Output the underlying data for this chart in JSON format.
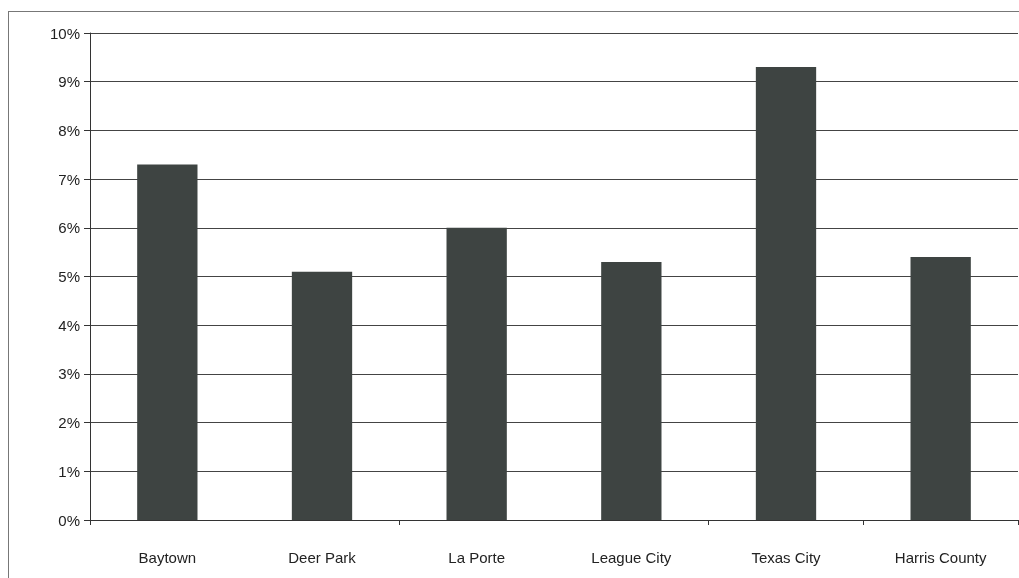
{
  "chart_data": {
    "type": "bar",
    "categories": [
      "Baytown",
      "Deer Park",
      "La Porte",
      "League City",
      "Texas City",
      "Harris County"
    ],
    "values": [
      7.3,
      5.1,
      6.0,
      5.3,
      9.3,
      5.4
    ],
    "color": "#3e4442",
    "ylim": [
      0,
      10
    ],
    "yticks": [
      {
        "value": 0,
        "label": "0%"
      },
      {
        "value": 1,
        "label": "1%"
      },
      {
        "value": 2,
        "label": "2%"
      },
      {
        "value": 3,
        "label": "3%"
      },
      {
        "value": 4,
        "label": "4%"
      },
      {
        "value": 5,
        "label": "5%"
      },
      {
        "value": 6,
        "label": "6%"
      },
      {
        "value": 7,
        "label": "7%"
      },
      {
        "value": 8,
        "label": "8%"
      },
      {
        "value": 9,
        "label": "9%"
      },
      {
        "value": 10,
        "label": "10%"
      }
    ],
    "grid": "y"
  }
}
